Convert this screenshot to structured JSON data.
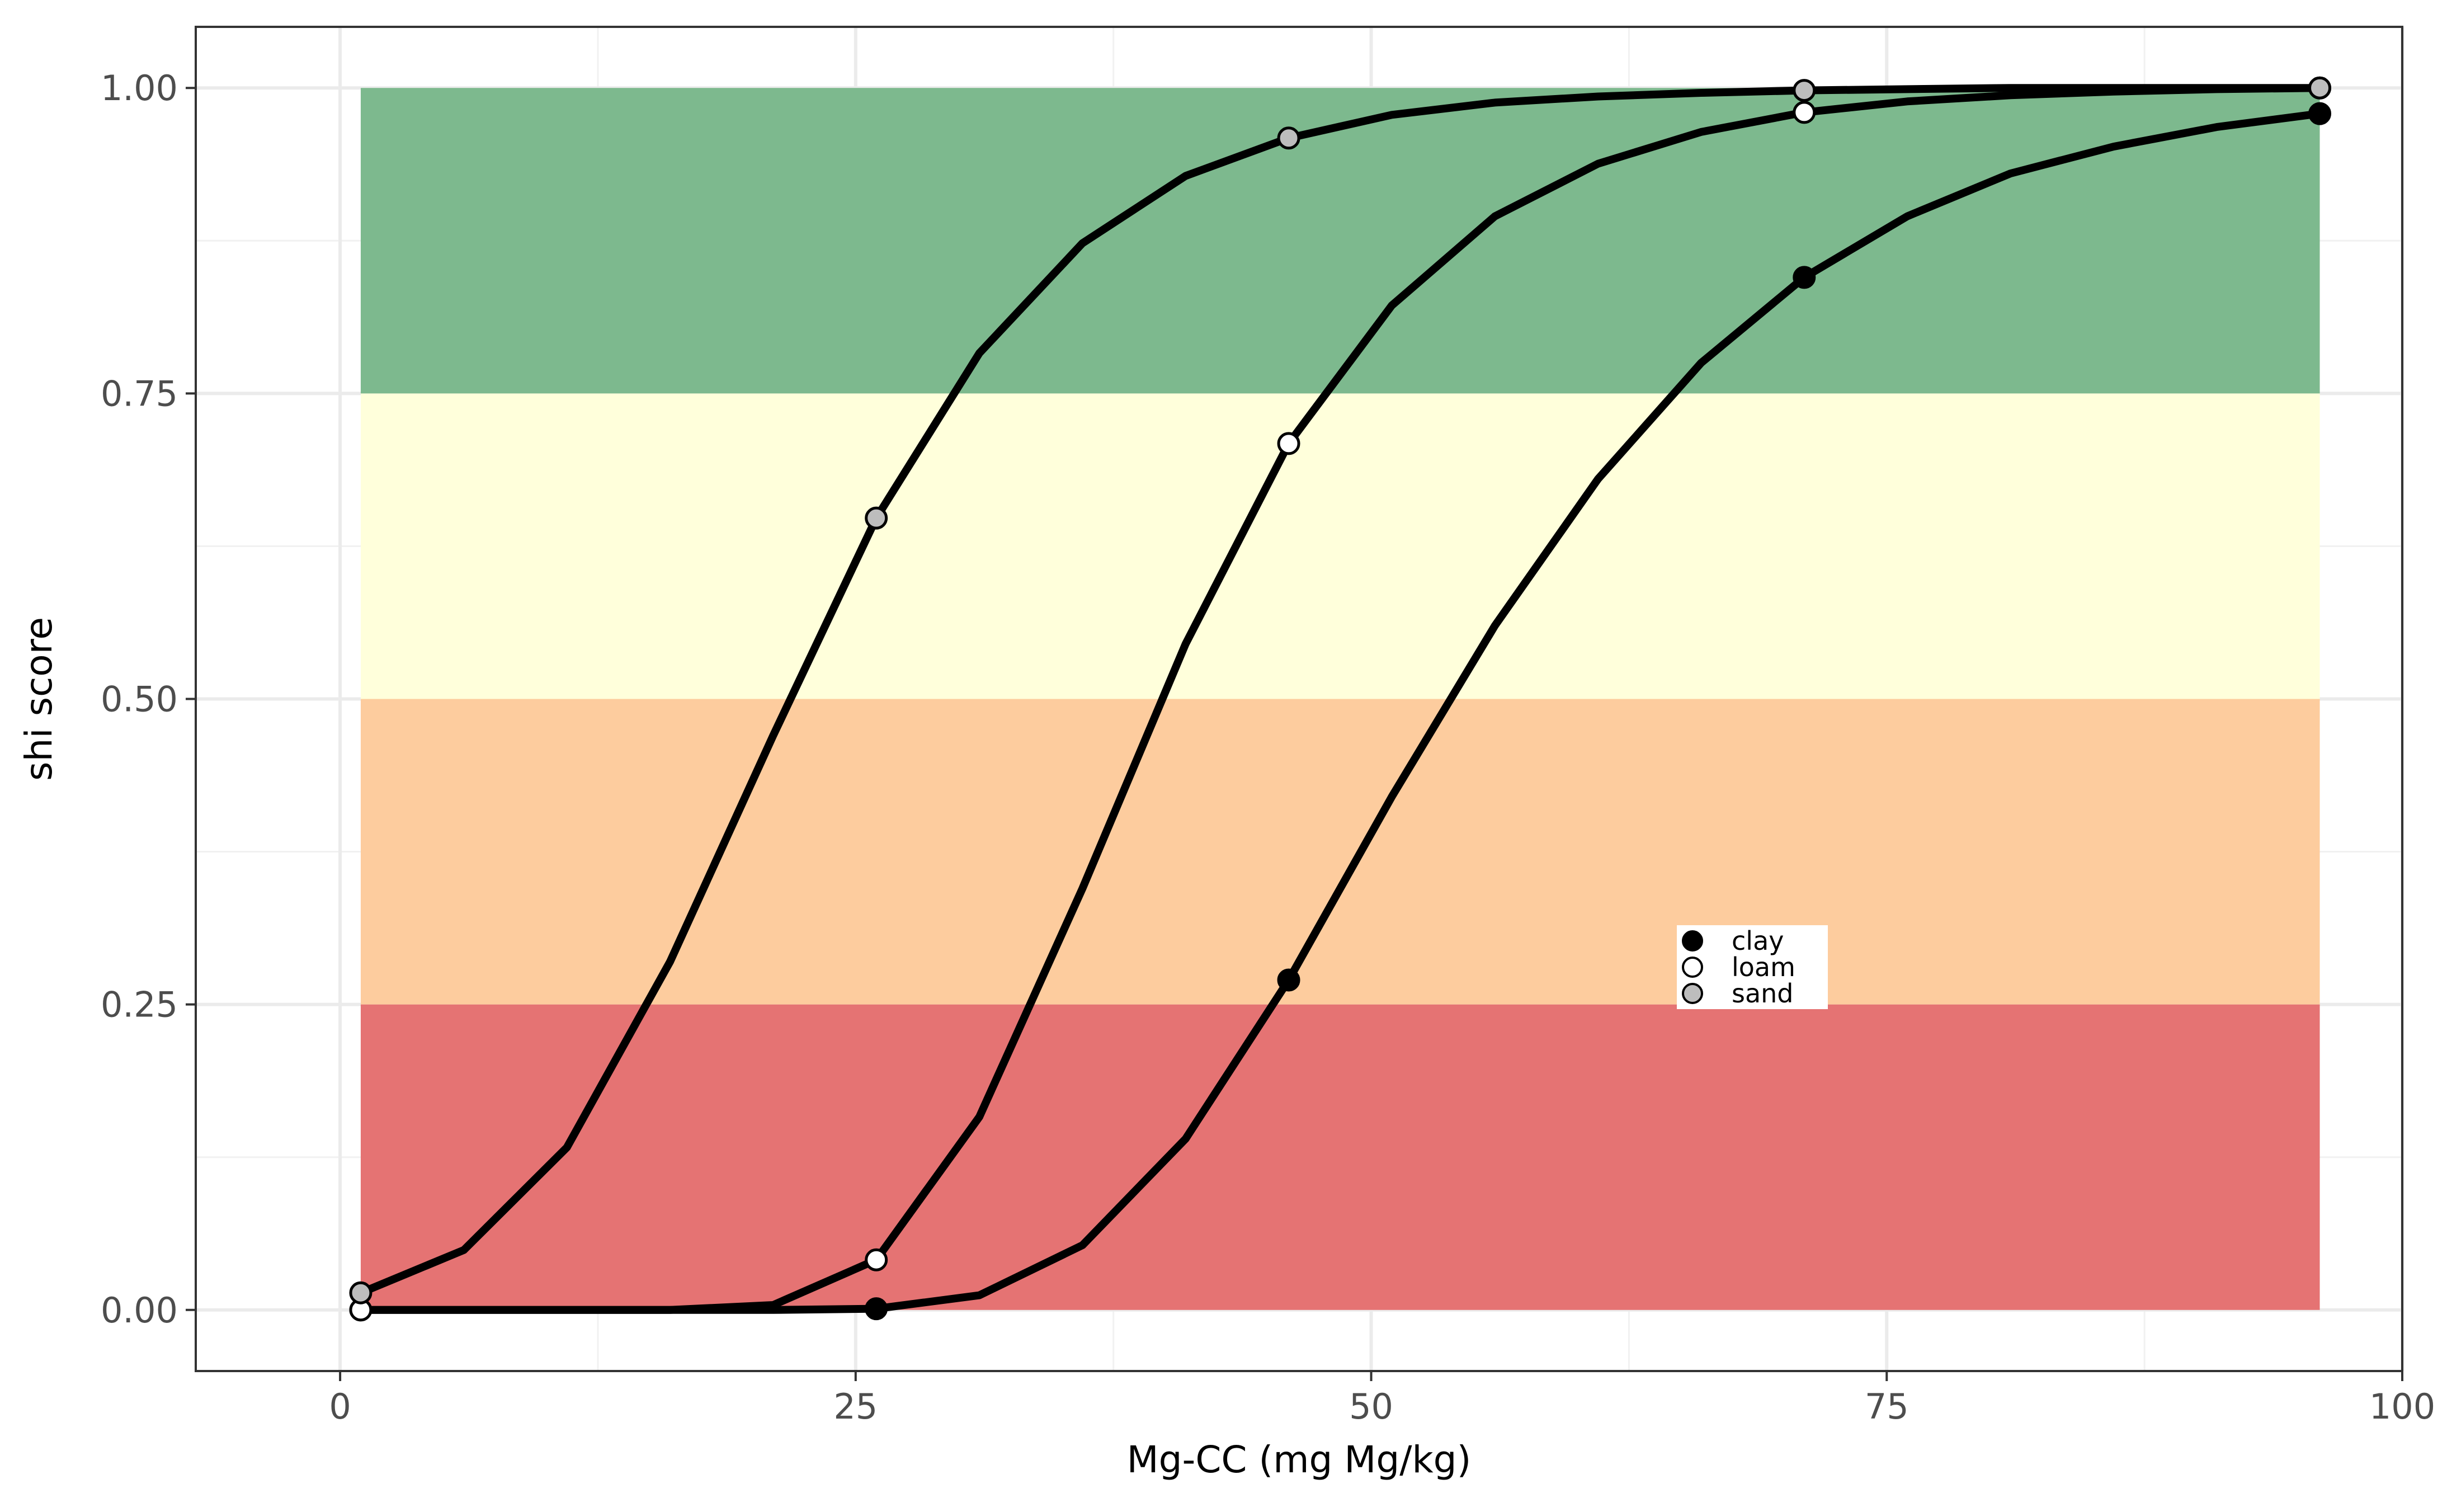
{
  "chart_data": {
    "type": "line",
    "title": "",
    "xlabel": "Mg-CC (mg Mg/kg)",
    "ylabel": "shi score",
    "xlim": [
      -7,
      100
    ],
    "ylim": [
      -0.05,
      1.05
    ],
    "x_ticks": [
      0,
      25,
      50,
      75,
      100
    ],
    "x_tick_labels": [
      "0",
      "25",
      "50",
      "75",
      "100"
    ],
    "y_ticks": [
      0,
      0.25,
      0.5,
      0.75,
      1
    ],
    "y_tick_labels": [
      "0.00",
      "0.25",
      "0.50",
      "0.75",
      "1.00"
    ],
    "grid": true,
    "bands": [
      {
        "from": 0.0,
        "to": 0.25,
        "x": [
          1,
          96
        ],
        "color": "#e57373"
      },
      {
        "from": 0.25,
        "to": 0.5,
        "x": [
          1,
          96
        ],
        "color": "#fdcc9e"
      },
      {
        "from": 0.5,
        "to": 0.75,
        "x": [
          1,
          96
        ],
        "color": "#ffffdb"
      },
      {
        "from": 0.75,
        "to": 1.0,
        "x": [
          1,
          96
        ],
        "color": "#7db98e"
      }
    ],
    "legend_position": "inside-lower-right",
    "series": [
      {
        "name": "clay",
        "marker_color": "#000000",
        "line": [
          [
            1,
            0
          ],
          [
            6,
            0
          ],
          [
            11,
            0
          ],
          [
            16,
            0
          ],
          [
            21,
            0
          ],
          [
            26,
            0.001
          ],
          [
            31,
            0.012
          ],
          [
            36,
            0.053
          ],
          [
            41,
            0.14
          ],
          [
            46,
            0.27
          ],
          [
            51,
            0.42
          ],
          [
            56,
            0.56
          ],
          [
            61,
            0.68
          ],
          [
            66,
            0.775
          ],
          [
            71,
            0.845
          ],
          [
            76,
            0.895
          ],
          [
            81,
            0.93
          ],
          [
            86,
            0.952
          ],
          [
            91,
            0.968
          ],
          [
            96,
            0.979
          ]
        ],
        "markers": [
          [
            1,
            0
          ],
          [
            26,
            0.001
          ],
          [
            46,
            0.27
          ],
          [
            71,
            0.845
          ],
          [
            96,
            0.979
          ]
        ]
      },
      {
        "name": "loam",
        "marker_color": "#ffffff",
        "line": [
          [
            1,
            0
          ],
          [
            6,
            0
          ],
          [
            11,
            0
          ],
          [
            16,
            0
          ],
          [
            21,
            0.004
          ],
          [
            26,
            0.041
          ],
          [
            31,
            0.158
          ],
          [
            36,
            0.345
          ],
          [
            41,
            0.545
          ],
          [
            46,
            0.709
          ],
          [
            51,
            0.822
          ],
          [
            56,
            0.895
          ],
          [
            61,
            0.938
          ],
          [
            66,
            0.964
          ],
          [
            71,
            0.98
          ],
          [
            76,
            0.989
          ],
          [
            81,
            0.994
          ],
          [
            86,
            0.997
          ],
          [
            91,
            0.999
          ],
          [
            96,
            1.0
          ]
        ],
        "markers": [
          [
            1,
            0
          ],
          [
            26,
            0.041
          ],
          [
            46,
            0.709
          ],
          [
            71,
            0.98
          ],
          [
            96,
            1.0
          ]
        ]
      },
      {
        "name": "sand",
        "marker_color": "#bdbdbd",
        "line": [
          [
            1,
            0.014
          ],
          [
            6,
            0.049
          ],
          [
            11,
            0.133
          ],
          [
            16,
            0.285
          ],
          [
            21,
            0.47
          ],
          [
            26,
            0.648
          ],
          [
            31,
            0.783
          ],
          [
            36,
            0.873
          ],
          [
            41,
            0.928
          ],
          [
            46,
            0.959
          ],
          [
            51,
            0.978
          ],
          [
            56,
            0.988
          ],
          [
            61,
            0.993
          ],
          [
            66,
            0.996
          ],
          [
            71,
            0.998
          ],
          [
            76,
            0.999
          ],
          [
            81,
            1.0
          ],
          [
            86,
            1.0
          ],
          [
            91,
            1.0
          ],
          [
            96,
            1.0
          ]
        ],
        "markers": [
          [
            1,
            0.014
          ],
          [
            26,
            0.648
          ],
          [
            46,
            0.959
          ],
          [
            71,
            0.998
          ],
          [
            96,
            1.0
          ]
        ]
      }
    ]
  }
}
